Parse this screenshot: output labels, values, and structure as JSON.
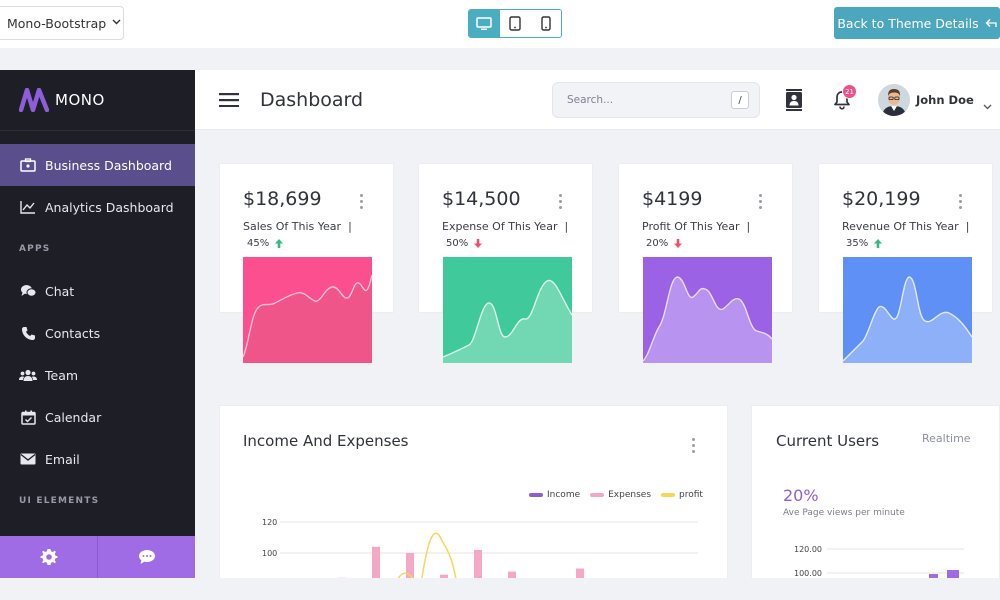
{
  "topbar": {
    "theme_selector": "Mono-Bootstrap",
    "back_button": "Back to Theme Details"
  },
  "brand": {
    "name": "MONO"
  },
  "sidebar": {
    "items": [
      {
        "label": "Business Dashboard",
        "icon": "briefcase-icon",
        "active": true
      },
      {
        "label": "Analytics Dashboard",
        "icon": "chart-line-icon"
      }
    ],
    "section_apps": "APPS",
    "apps": [
      {
        "label": "Chat",
        "icon": "chat-icon"
      },
      {
        "label": "Contacts",
        "icon": "phone-icon"
      },
      {
        "label": "Team",
        "icon": "team-icon"
      },
      {
        "label": "Calendar",
        "icon": "calendar-icon"
      },
      {
        "label": "Email",
        "icon": "email-icon"
      }
    ],
    "section_ui": "UI ELEMENTS",
    "footer": [
      "gear-icon",
      "message-icon"
    ]
  },
  "header": {
    "title": "Dashboard",
    "search_placeholder": "Search...",
    "search_shortcut": "/",
    "notifications_count": "21",
    "user_name": "John Doe"
  },
  "stats": [
    {
      "value": "$18,699",
      "label": "Sales Of This Year",
      "pct": "45%",
      "trend": "up",
      "color_top": "#ff4d8e",
      "color_bottom": "#f0558a"
    },
    {
      "value": "$14,500",
      "label": "Expense Of This Year",
      "pct": "50%",
      "trend": "down",
      "color_top": "#3ec79b",
      "color_bottom": "#46cc9f"
    },
    {
      "value": "$4199",
      "label": "Profit Of This Year",
      "pct": "20%",
      "trend": "down",
      "color_top": "#9d63e6",
      "color_bottom": "#a56ae9"
    },
    {
      "value": "$20,199",
      "label": "Revenue Of This Year",
      "pct": "35%",
      "trend": "up",
      "color_top": "#5f91f7",
      "color_bottom": "#6a98f8"
    }
  ],
  "income": {
    "title": "Income And Expenses",
    "legend": [
      {
        "name": "Income",
        "color": "#8e5ed9"
      },
      {
        "name": "Expenses",
        "color": "#f5a7c6"
      },
      {
        "name": "profit",
        "color": "#f5d85a"
      }
    ]
  },
  "users": {
    "title": "Current Users",
    "realtime": "Realtime",
    "pct": "20%",
    "subtitle": "Ave Page views per minute"
  },
  "chart_data": [
    {
      "type": "bar",
      "title": "Income And Expenses",
      "yticks": [
        100,
        120
      ],
      "series": [
        {
          "name": "Expenses",
          "values": [
            84,
            104,
            100,
            86,
            102,
            88,
            90
          ]
        },
        {
          "name": "profit",
          "values": [
            88,
            104
          ]
        }
      ]
    },
    {
      "type": "bar",
      "title": "Current Users",
      "yticks": [
        "100.00",
        "120.00"
      ]
    }
  ]
}
